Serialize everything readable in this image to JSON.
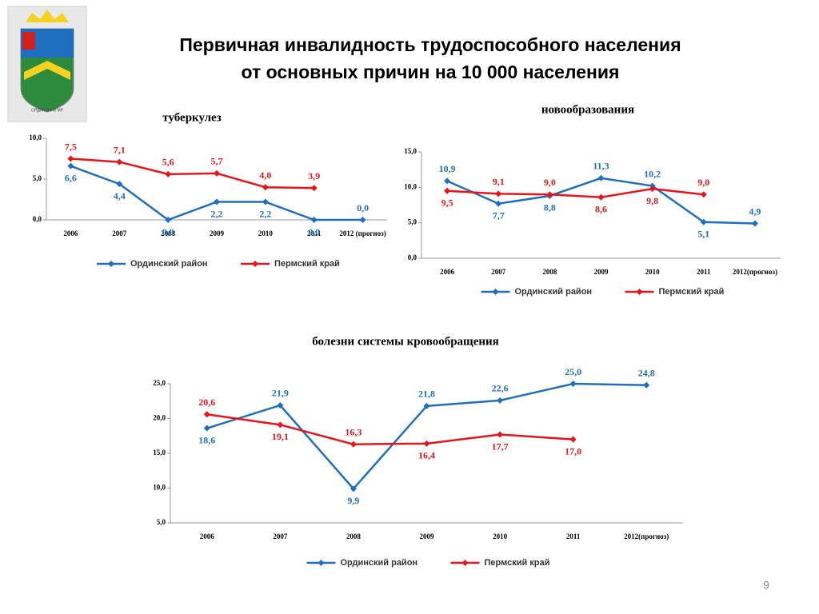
{
  "title": "Первичная инвалидность трудоспособного населения",
  "subtitle": "от основных причин на 10 000 населения",
  "logo_caption": "ОРДИНСКИЙ МР",
  "page_number": "9",
  "chart_data": [
    {
      "type": "line",
      "title": "туберкулез",
      "categories": [
        "2006",
        "2007",
        "2008",
        "2009",
        "2010",
        "2011",
        "2012 (прогноз)"
      ],
      "ylim": [
        0,
        10
      ],
      "yticks": [
        {
          "value": 0,
          "label": "0,0"
        },
        {
          "value": 5,
          "label": "5,0"
        },
        {
          "value": 10,
          "label": "10,0"
        }
      ],
      "grid": false,
      "series": [
        {
          "name": "Ординский район",
          "color": "#1f6fc1",
          "values": [
            6.6,
            4.4,
            0.0,
            2.2,
            2.2,
            0.0,
            0.0
          ],
          "value_labels": [
            "6,6",
            "4,4",
            "0,0",
            "2,2",
            "2,2",
            "0,0",
            "0,0"
          ]
        },
        {
          "name": "Пермский край",
          "color": "#e8141b",
          "values": [
            7.5,
            7.1,
            5.6,
            5.7,
            4.0,
            3.9,
            null
          ],
          "value_labels": [
            "7,5",
            "7,1",
            "5,6",
            "5,7",
            "4,0",
            "3,9",
            null
          ]
        }
      ]
    },
    {
      "type": "line",
      "title": "новообразования",
      "categories": [
        "2006",
        "2007",
        "2008",
        "2009",
        "2010",
        "2011",
        "2012(прогноз)"
      ],
      "ylim": [
        0,
        15
      ],
      "yticks": [
        {
          "value": 0,
          "label": "0,0"
        },
        {
          "value": 5,
          "label": "5,0"
        },
        {
          "value": 10,
          "label": "10,0"
        },
        {
          "value": 15,
          "label": "15,0"
        }
      ],
      "grid": false,
      "series": [
        {
          "name": "Ординский район",
          "color": "#1f6fc1",
          "values": [
            10.9,
            7.7,
            8.8,
            11.3,
            10.2,
            5.1,
            4.9
          ],
          "value_labels": [
            "10,9",
            "7,7",
            "8,8",
            "11,3",
            "10,2",
            "5,1",
            "4,9"
          ]
        },
        {
          "name": "Пермский край",
          "color": "#e8141b",
          "values": [
            9.5,
            9.1,
            9.0,
            8.6,
            9.8,
            9.0,
            null
          ],
          "value_labels": [
            "9,5",
            "9,1",
            "9,0",
            "8,6",
            "9,8",
            "9,0",
            null
          ]
        }
      ]
    },
    {
      "type": "line",
      "title": "болезни системы кровообращения",
      "categories": [
        "2006",
        "2007",
        "2008",
        "2009",
        "2010",
        "2011",
        "2012(прогноз)"
      ],
      "ylim": [
        5,
        25
      ],
      "yticks": [
        {
          "value": 5,
          "label": "5,0"
        },
        {
          "value": 10,
          "label": "10,0"
        },
        {
          "value": 15,
          "label": "15,0"
        },
        {
          "value": 20,
          "label": "20,0"
        },
        {
          "value": 25,
          "label": "25,0"
        }
      ],
      "grid": false,
      "series": [
        {
          "name": "Ординский район",
          "color": "#1f6fc1",
          "values": [
            18.6,
            21.9,
            9.9,
            21.8,
            22.6,
            25.0,
            24.8
          ],
          "value_labels": [
            "18,6",
            "21,9",
            "9,9",
            "21,8",
            "22,6",
            "25,0",
            "24,8"
          ]
        },
        {
          "name": "Пермский край",
          "color": "#e8141b",
          "values": [
            20.6,
            19.1,
            16.3,
            16.4,
            17.7,
            17.0,
            null
          ],
          "value_labels": [
            "20,6",
            "19,1",
            "16,3",
            "16,4",
            "17,7",
            "17,0",
            null
          ]
        }
      ]
    }
  ]
}
